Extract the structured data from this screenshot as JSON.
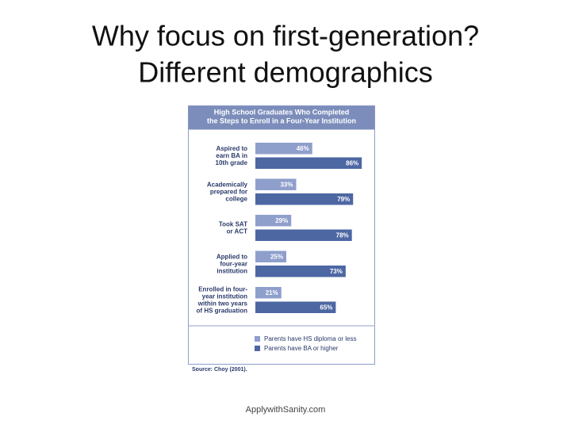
{
  "slide": {
    "title_lines": [
      "Why focus on first-generation?",
      "Different demographics"
    ],
    "footer": "ApplywithSanity.com"
  },
  "chart_data": {
    "type": "bar",
    "orientation": "horizontal",
    "title_lines": [
      "High School Graduates Who Completed",
      "the Steps to Enroll in a Four-Year Institution"
    ],
    "categories": [
      [
        "Aspired to",
        "earn BA in",
        "10th grade"
      ],
      [
        "Academically",
        "prepared for",
        "college"
      ],
      [
        "Took SAT",
        "or ACT"
      ],
      [
        "Applied to",
        "four-year",
        "institution"
      ],
      [
        "Enrolled in four-",
        "year institution",
        "within two years",
        "of HS graduation"
      ]
    ],
    "series": [
      {
        "name": "Parents have HS diploma or less",
        "color": "#8f9fcc",
        "values": [
          46,
          33,
          29,
          25,
          21
        ],
        "value_labels": [
          "46%",
          "33%",
          "29%",
          "25%",
          "21%"
        ]
      },
      {
        "name": "Parents have BA or higher",
        "color": "#4d67a3",
        "values": [
          86,
          79,
          78,
          73,
          65
        ],
        "value_labels": [
          "86%",
          "79%",
          "78%",
          "73%",
          "65%"
        ]
      }
    ],
    "source": "Source: Choy (2001)."
  }
}
